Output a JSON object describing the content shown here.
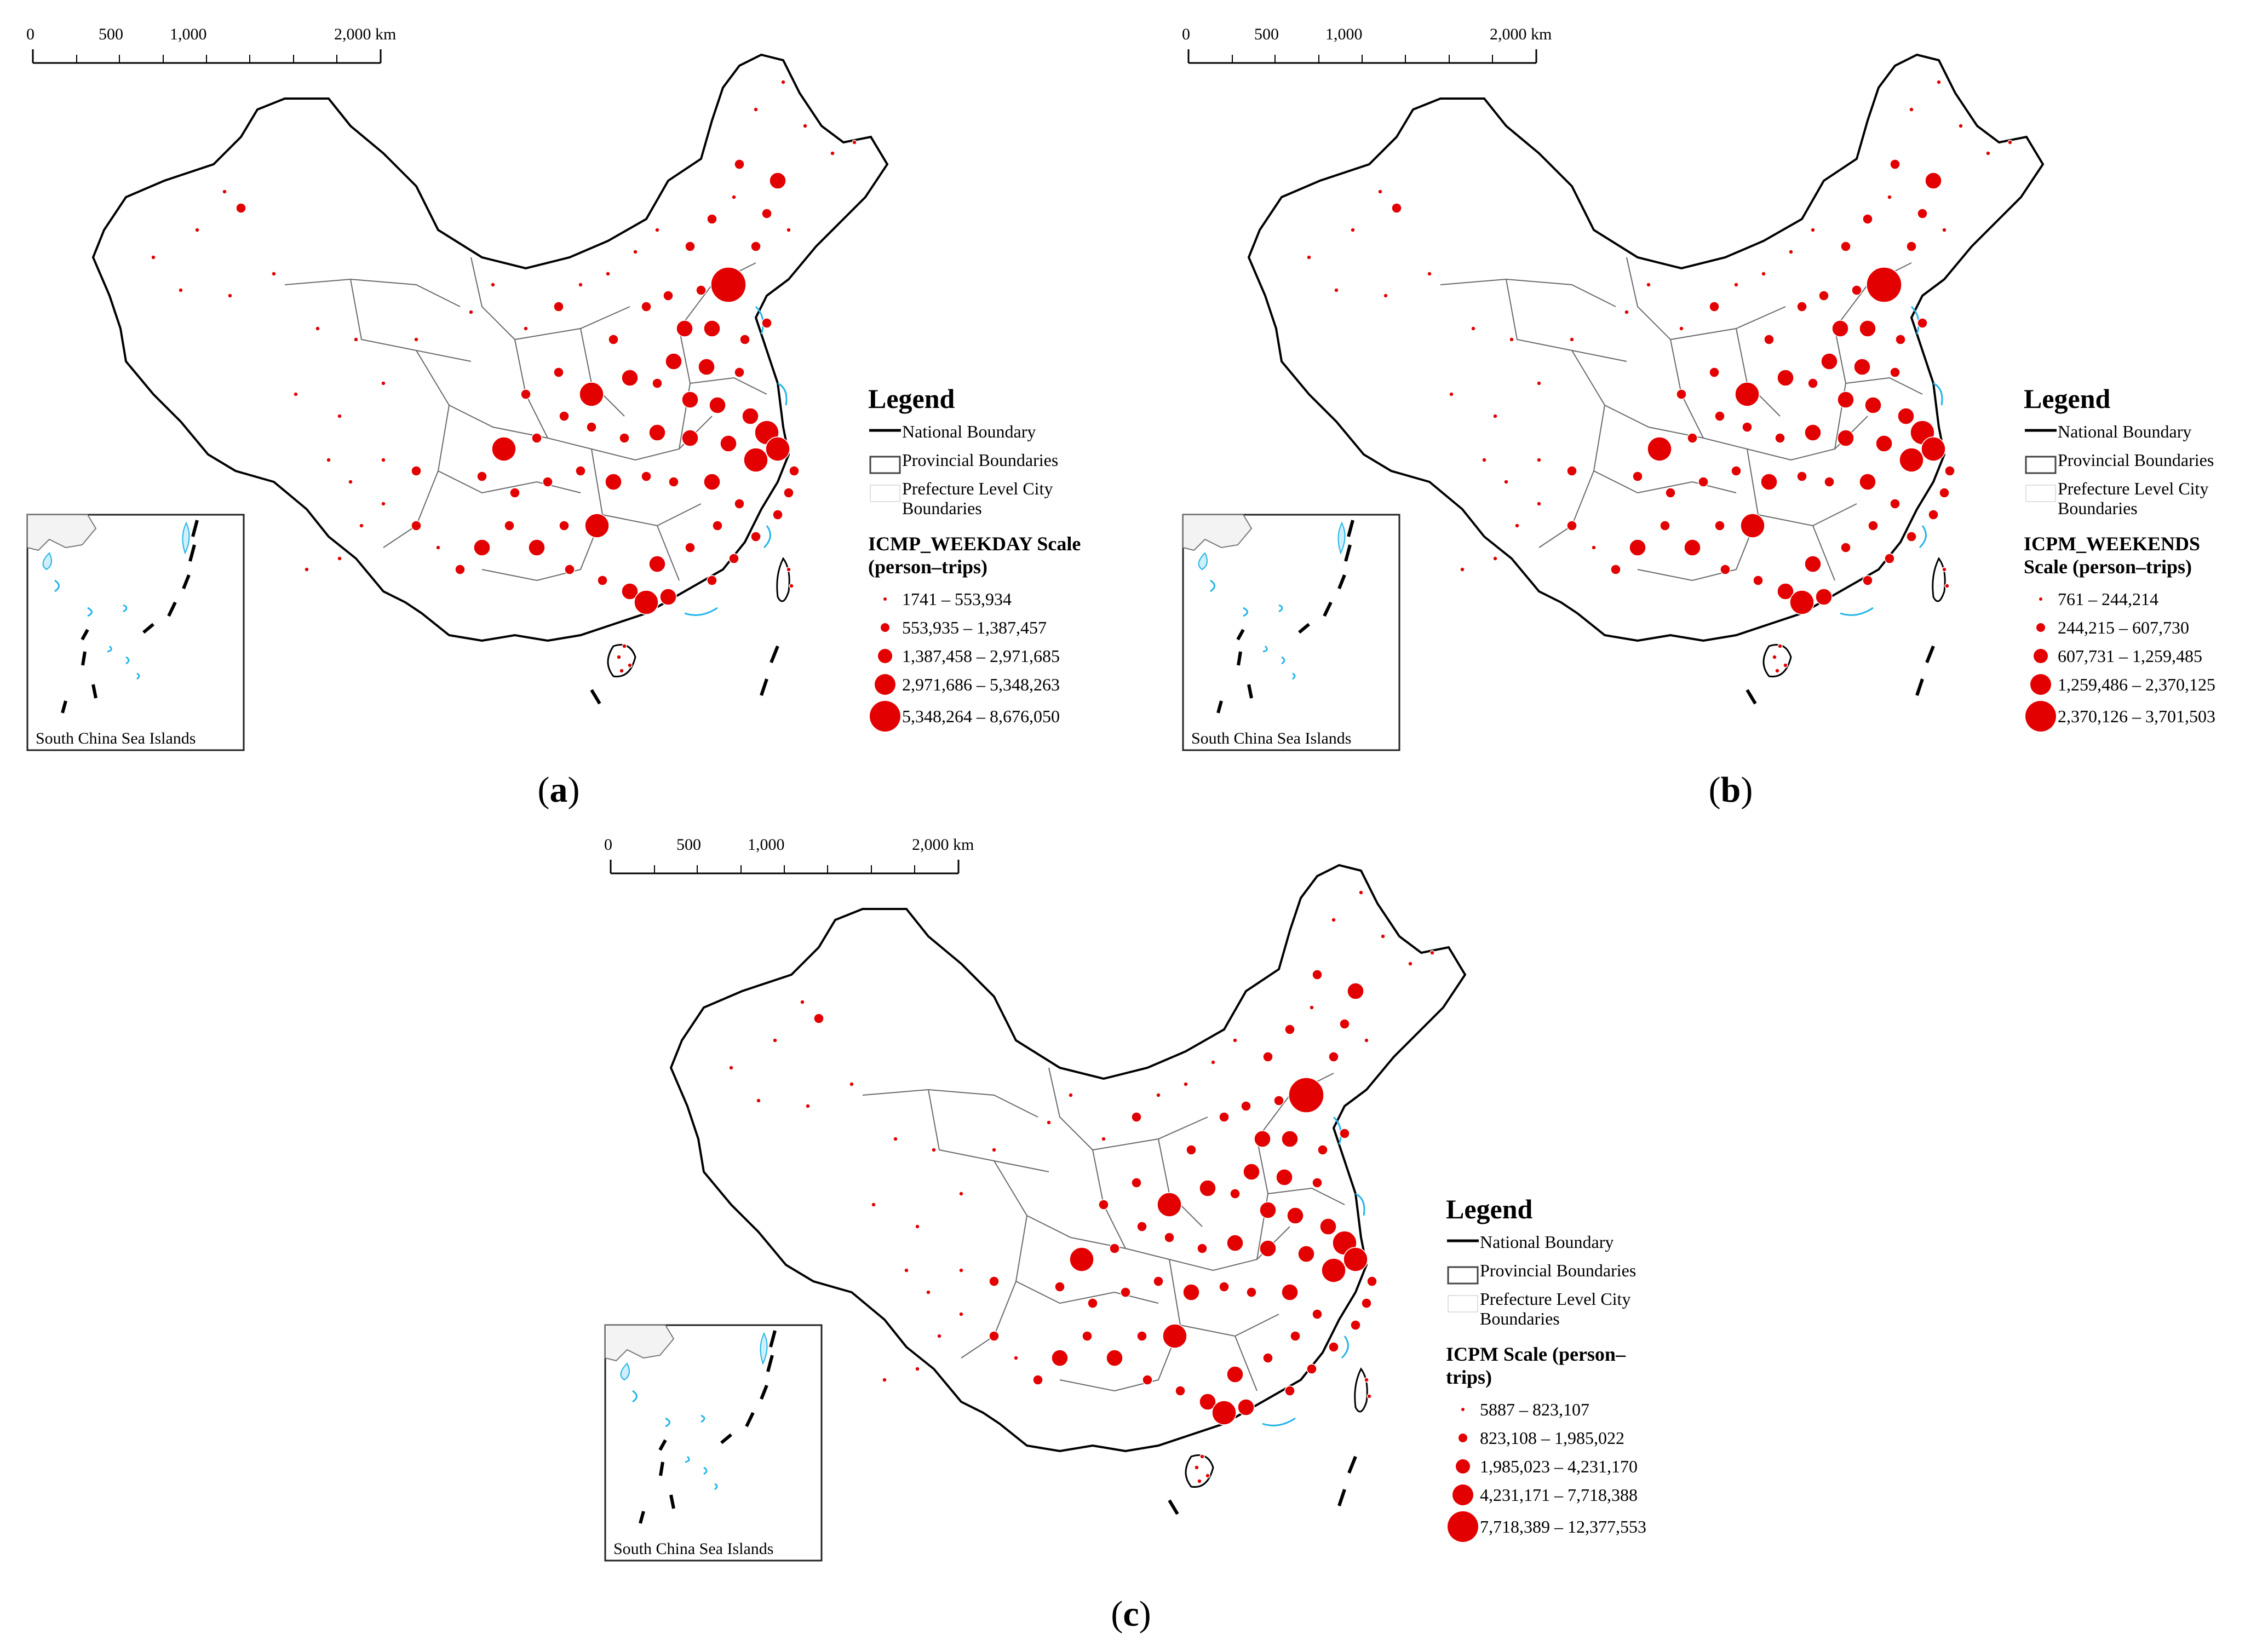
{
  "scale_bar": {
    "ticks": [
      "0",
      "500",
      "1,000",
      "2,000 km"
    ]
  },
  "inset_label": "South China Sea Islands",
  "legend_common": {
    "title": "Legend",
    "items": [
      "National Boundary",
      "Provincial Boundaries",
      "Prefecture Level City Boundaries"
    ]
  },
  "colors": {
    "symbol": "#e30000",
    "sea": "#23b5e8",
    "national": "#000000",
    "province": "#5a5a5a",
    "city": "#d6d6d6"
  },
  "panels": [
    {
      "caption_letter": "a",
      "scale_title": "ICMP_WEEKDAY Scale (person–trips)",
      "classes": [
        "1741 – 553,934",
        "553,935 – 1,387,457",
        "1,387,458 – 2,971,685",
        "2,971,686 – 5,348,263",
        "5,348,264 – 8,676,050"
      ]
    },
    {
      "caption_letter": "b",
      "scale_title": "ICPM_WEEKENDS Scale (person–trips)",
      "classes": [
        "761 – 244,214",
        "244,215 – 607,730",
        "607,731 – 1,259,485",
        "1,259,486 – 2,370,125",
        "2,370,126 – 3,701,503"
      ]
    },
    {
      "caption_letter": "c",
      "scale_title": "ICPM Scale (person–trips)",
      "classes": [
        "5887 – 823,107",
        "823,108 – 1,985,022",
        "1,985,023 – 4,231,170",
        "4,231,171 – 7,718,388",
        "7,718,389 – 12,377,553"
      ]
    }
  ]
}
